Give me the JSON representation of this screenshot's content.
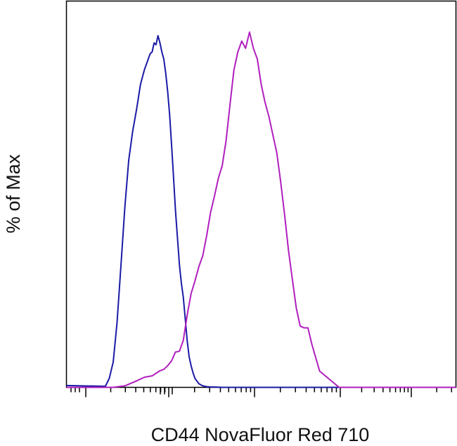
{
  "chart_data": {
    "type": "line",
    "title": "",
    "xlabel": "CD44 NovaFluor Red 710",
    "ylabel": "% of Max",
    "x_scale": "log",
    "xlim": [
      0.0,
      1.0
    ],
    "ylim": [
      0,
      100
    ],
    "grid": false,
    "legend": "none",
    "series": [
      {
        "color": "#1a1aa6",
        "x": [
          0.0,
          0.1,
          0.11,
          0.12,
          0.13,
          0.14,
          0.15,
          0.16,
          0.17,
          0.18,
          0.19,
          0.2,
          0.21,
          0.215,
          0.22,
          0.225,
          0.23,
          0.235,
          0.24,
          0.245,
          0.25,
          0.255,
          0.26,
          0.265,
          0.27,
          0.275,
          0.28,
          0.285,
          0.29,
          0.295,
          0.3,
          0.305,
          0.31,
          0.315,
          0.32,
          0.325,
          0.33,
          0.34,
          0.35,
          0.36,
          0.37,
          0.38,
          0.4,
          0.5,
          1.0
        ],
        "y": [
          0.5,
          0.3,
          2.5,
          7.0,
          18.0,
          34.0,
          50.0,
          63.0,
          71.0,
          77.0,
          84.0,
          88.0,
          91.0,
          92.5,
          93.0,
          95.5,
          95.0,
          97.5,
          95.5,
          93.0,
          91.0,
          87.0,
          82.0,
          75.5,
          67.0,
          58.0,
          49.0,
          41.5,
          34.0,
          29.0,
          25.0,
          19.0,
          13.0,
          8.5,
          6.0,
          4.0,
          2.5,
          1.0,
          0.4,
          0.2,
          0.1,
          0.1,
          0.0,
          0.0,
          0.0
        ]
      },
      {
        "color": "#b01ebe",
        "x": [
          0.0,
          0.12,
          0.15,
          0.18,
          0.2,
          0.22,
          0.24,
          0.25,
          0.26,
          0.27,
          0.28,
          0.29,
          0.3,
          0.31,
          0.32,
          0.33,
          0.34,
          0.35,
          0.36,
          0.37,
          0.38,
          0.39,
          0.4,
          0.41,
          0.42,
          0.43,
          0.44,
          0.45,
          0.46,
          0.47,
          0.48,
          0.49,
          0.5,
          0.51,
          0.52,
          0.53,
          0.54,
          0.55,
          0.56,
          0.57,
          0.58,
          0.59,
          0.6,
          0.61,
          0.62,
          0.63,
          0.65,
          0.7,
          1.0
        ],
        "y": [
          0.0,
          0.0,
          0.4,
          1.8,
          2.8,
          3.2,
          4.6,
          5.0,
          6.0,
          7.4,
          9.8,
          10.0,
          13.0,
          20.0,
          26.0,
          29.5,
          33.5,
          36.5,
          42.0,
          48.5,
          53.0,
          58.0,
          61.5,
          68.5,
          78.5,
          88.0,
          93.0,
          96.0,
          94.0,
          98.5,
          94.0,
          91.0,
          84.0,
          79.0,
          75.0,
          70.0,
          65.0,
          57.0,
          48.0,
          38.0,
          30.0,
          22.0,
          17.0,
          16.5,
          16.5,
          12.0,
          4.5,
          0.0,
          0.0
        ]
      }
    ]
  }
}
